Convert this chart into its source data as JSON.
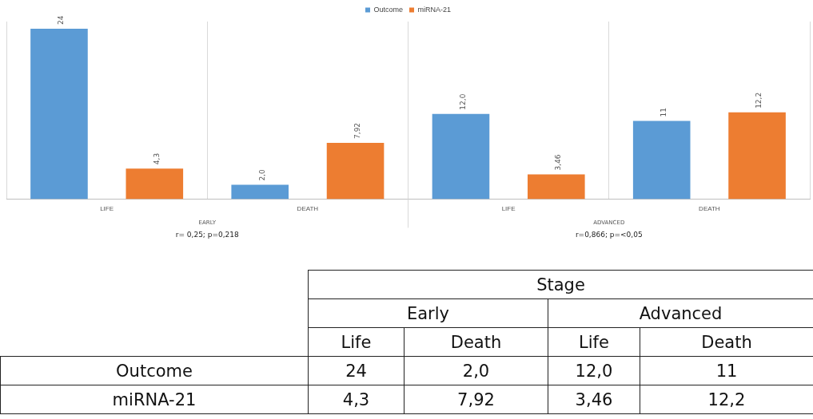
{
  "chart_data": {
    "type": "bar",
    "categories": [
      "LIFE",
      "DEATH",
      "LIFE",
      "DEATH"
    ],
    "series": [
      {
        "name": "Outcome",
        "color": "#5b9bd5",
        "values": [
          24,
          2.0,
          12.0,
          11
        ],
        "value_labels": [
          "24",
          "2,0",
          "12,0",
          "11"
        ]
      },
      {
        "name": "miRNA-21",
        "color": "#ed7d31",
        "values": [
          4.3,
          7.92,
          3.46,
          12.2
        ],
        "value_labels": [
          "4,3",
          "7,92",
          "3,46",
          "12,2"
        ]
      }
    ],
    "annotations": [
      "EARLY",
      "ADVANCED",
      "r= 0,25; p=0,218",
      "r=0,866; p=<0,05",
      "Stage",
      "Early",
      "Advanced",
      "Life",
      "Death",
      "Life",
      "Death"
    ],
    "legend": "top",
    "grid": "x"
  }
}
